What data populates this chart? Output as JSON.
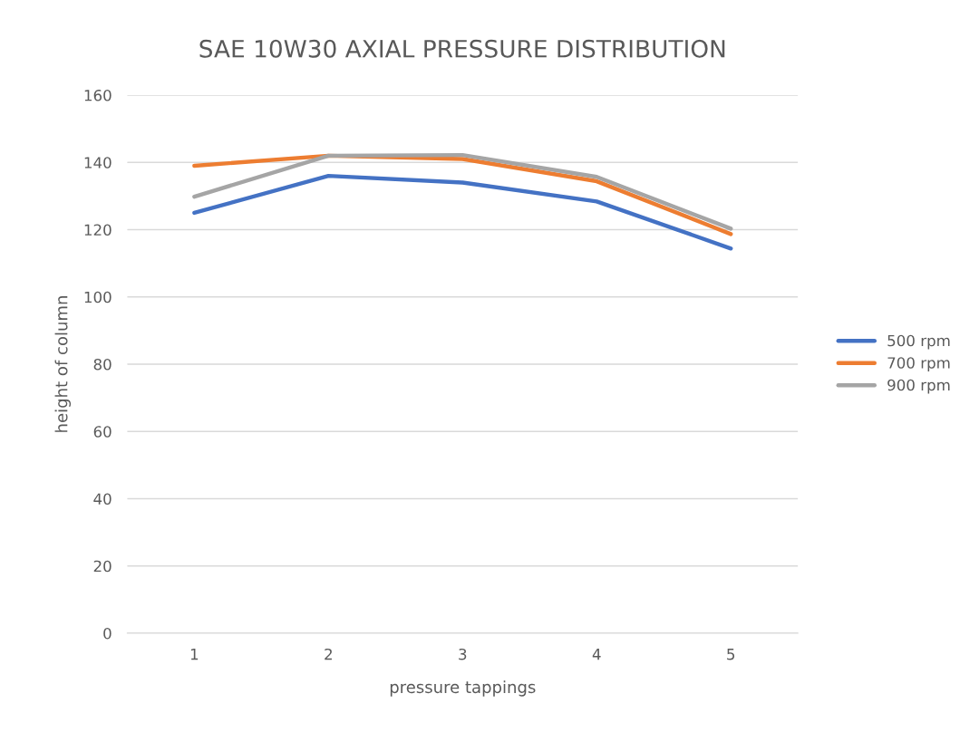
{
  "chart_data": {
    "type": "line",
    "title": "SAE 10W30 AXIAL PRESSURE DISTRIBUTION",
    "xlabel": "pressure tappings",
    "ylabel": "height of column",
    "categories": [
      "1",
      "2",
      "3",
      "4",
      "5"
    ],
    "series": [
      {
        "name": "500 rpm",
        "color": "#4472c4",
        "values": [
          125,
          136,
          134,
          128.4,
          114.4
        ]
      },
      {
        "name": "700 rpm",
        "color": "#ed7d31",
        "values": [
          139,
          142,
          141,
          134.4,
          118.7
        ]
      },
      {
        "name": "900 rpm",
        "color": "#a5a5a5",
        "values": [
          129.8,
          142,
          142.2,
          135.7,
          120.3
        ]
      }
    ],
    "ylim": [
      0,
      160
    ],
    "yticks": [
      0,
      20,
      40,
      60,
      80,
      100,
      120,
      140,
      160
    ],
    "grid": "y",
    "legend": "right",
    "marker": "none",
    "line_style": "solid"
  }
}
